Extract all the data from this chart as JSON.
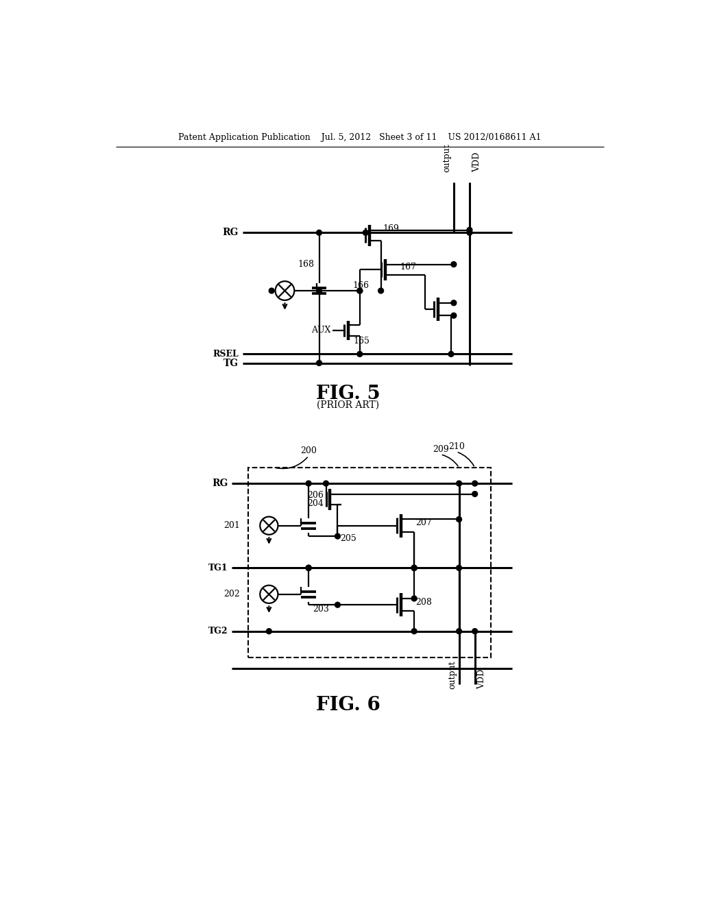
{
  "bg": "#ffffff",
  "header": "Patent Application Publication    Jul. 5, 2012   Sheet 3 of 11    US 2012/0168611 A1",
  "fig5_title": "FIG. 5",
  "fig5_sub": "(PRIOR ART)",
  "fig6_title": "FIG. 6",
  "lw": 1.6,
  "lw2": 2.2,
  "dot_r": 0.005
}
